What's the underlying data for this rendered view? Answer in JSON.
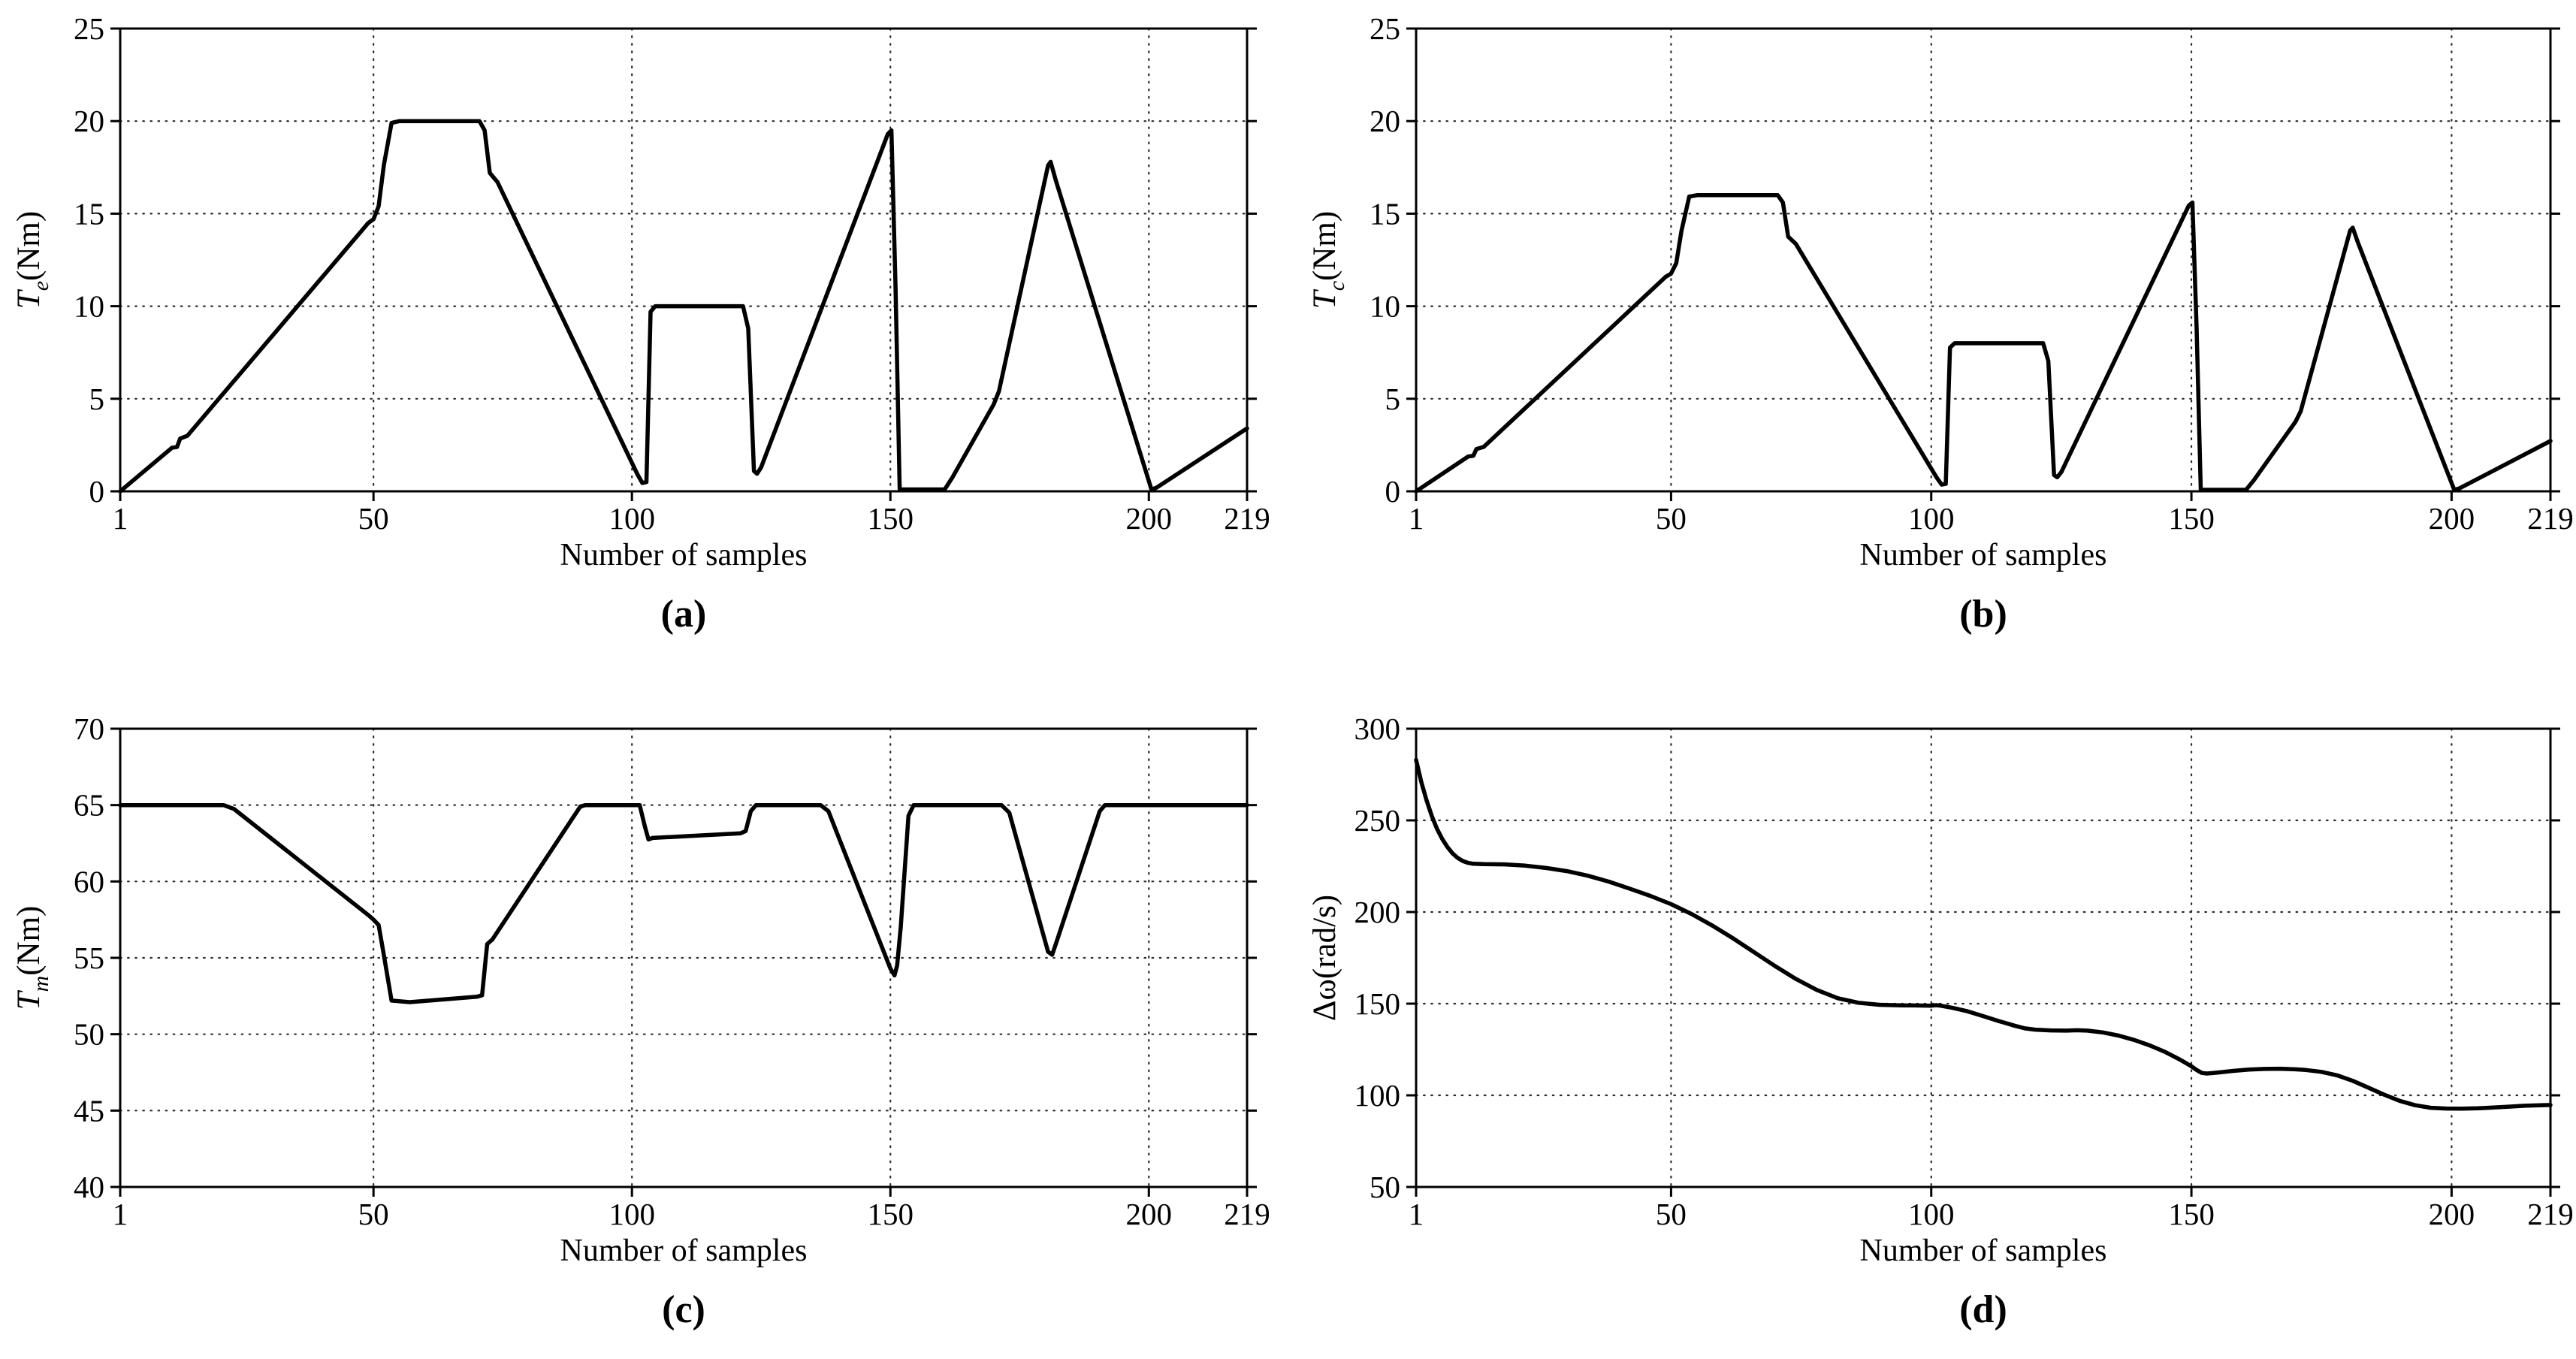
{
  "figure": {
    "background": "#ffffff",
    "curve_color": "#000000",
    "grid_color": "#2b2b2b",
    "axis_color": "#000000",
    "xlabel": "Number of samples"
  },
  "chart_data": [
    {
      "type": "line",
      "panel": "a",
      "caption": "(a)",
      "title": "",
      "xlabel": "Number of samples",
      "ylabel": "T_e(Nm)",
      "ylabel_parts": {
        "main": "T",
        "sub": "e",
        "unit": "(Nm)"
      },
      "xlim": [
        1,
        219
      ],
      "ylim": [
        0,
        25
      ],
      "xticks": [
        1,
        50,
        100,
        150,
        200,
        219
      ],
      "yticks": [
        0,
        5,
        10,
        15,
        20,
        25
      ],
      "grid": true,
      "legend": "none",
      "series": [
        {
          "name": "T_e",
          "points": [
            [
              1,
              0
            ],
            [
              11,
              2.35
            ],
            [
              12,
              2.4
            ],
            [
              12.6,
              2.85
            ],
            [
              14,
              3
            ],
            [
              49,
              14.5
            ],
            [
              50,
              14.7
            ],
            [
              51,
              15.4
            ],
            [
              52,
              17.6
            ],
            [
              53.5,
              19.9
            ],
            [
              55,
              20
            ],
            [
              70.5,
              20
            ],
            [
              71.5,
              19.5
            ],
            [
              72.5,
              17.2
            ],
            [
              74,
              16.7
            ],
            [
              101,
              0.95
            ],
            [
              102,
              0.45
            ],
            [
              102.8,
              0.5
            ],
            [
              103.6,
              9.7
            ],
            [
              104.5,
              10
            ],
            [
              121.5,
              10
            ],
            [
              122.5,
              8.8
            ],
            [
              123.6,
              1.1
            ],
            [
              124.2,
              0.95
            ],
            [
              125,
              1.3
            ],
            [
              149.5,
              19.3
            ],
            [
              150.2,
              19.5
            ],
            [
              151,
              11
            ],
            [
              151.8,
              0.1
            ],
            [
              160.5,
              0.1
            ],
            [
              162,
              0.75
            ],
            [
              170,
              4.7
            ],
            [
              171,
              5.4
            ],
            [
              180.5,
              17.6
            ],
            [
              181,
              17.8
            ],
            [
              182,
              16.8
            ],
            [
              200.5,
              0.1
            ],
            [
              201.5,
              0.2
            ],
            [
              219,
              3.4
            ]
          ]
        }
      ]
    },
    {
      "type": "line",
      "panel": "b",
      "caption": "(b)",
      "title": "",
      "xlabel": "Number of samples",
      "ylabel": "T_c(Nm)",
      "ylabel_parts": {
        "main": "T",
        "sub": "c",
        "unit": "(Nm)"
      },
      "xlim": [
        1,
        219
      ],
      "ylim": [
        0,
        25
      ],
      "xticks": [
        1,
        50,
        100,
        150,
        200,
        219
      ],
      "yticks": [
        0,
        5,
        10,
        15,
        20,
        25
      ],
      "grid": true,
      "legend": "none",
      "series": [
        {
          "name": "T_c",
          "points": [
            [
              1,
              0
            ],
            [
              11,
              1.88
            ],
            [
              12,
              1.92
            ],
            [
              12.6,
              2.28
            ],
            [
              14,
              2.4
            ],
            [
              49,
              11.6
            ],
            [
              50,
              11.76
            ],
            [
              51,
              12.32
            ],
            [
              52,
              14.08
            ],
            [
              53.5,
              15.92
            ],
            [
              55,
              16
            ],
            [
              70.5,
              16
            ],
            [
              71.5,
              15.6
            ],
            [
              72.5,
              13.76
            ],
            [
              74,
              13.36
            ],
            [
              101,
              0.76
            ],
            [
              102,
              0.36
            ],
            [
              102.8,
              0.4
            ],
            [
              103.6,
              7.76
            ],
            [
              104.5,
              8
            ],
            [
              121.5,
              8
            ],
            [
              122.5,
              7.04
            ],
            [
              123.6,
              0.88
            ],
            [
              124.2,
              0.76
            ],
            [
              125,
              1.04
            ],
            [
              149.5,
              15.44
            ],
            [
              150.2,
              15.6
            ],
            [
              151,
              8.8
            ],
            [
              151.8,
              0.08
            ],
            [
              160.5,
              0.08
            ],
            [
              162,
              0.6
            ],
            [
              170,
              3.76
            ],
            [
              171,
              4.32
            ],
            [
              180.5,
              14.08
            ],
            [
              181,
              14.24
            ],
            [
              182,
              13.44
            ],
            [
              200.5,
              0.08
            ],
            [
              201.5,
              0.16
            ],
            [
              219,
              2.72
            ]
          ]
        }
      ]
    },
    {
      "type": "line",
      "panel": "c",
      "caption": "(c)",
      "title": "",
      "xlabel": "Number of samples",
      "ylabel": "T_m(Nm)",
      "ylabel_parts": {
        "main": "T",
        "sub": "m",
        "unit": "(Nm)"
      },
      "xlim": [
        1,
        219
      ],
      "ylim": [
        40,
        70
      ],
      "xticks": [
        1,
        50,
        100,
        150,
        200,
        219
      ],
      "yticks": [
        40,
        45,
        50,
        55,
        60,
        65,
        70
      ],
      "grid": true,
      "legend": "none",
      "series": [
        {
          "name": "T_m",
          "points": [
            [
              1,
              65
            ],
            [
              21,
              65
            ],
            [
              23,
              64.75
            ],
            [
              49,
              57.8
            ],
            [
              50,
              57.5
            ],
            [
              51,
              57.15
            ],
            [
              52,
              55.2
            ],
            [
              53.5,
              52.2
            ],
            [
              57,
              52.1
            ],
            [
              70,
              52.45
            ],
            [
              71,
              52.55
            ],
            [
              72,
              55.9
            ],
            [
              73,
              56.2
            ],
            [
              90,
              64.9
            ],
            [
              91,
              65
            ],
            [
              101.5,
              65
            ],
            [
              102.5,
              63.6
            ],
            [
              103.2,
              62.75
            ],
            [
              104,
              62.85
            ],
            [
              121,
              63.15
            ],
            [
              122,
              63.3
            ],
            [
              123,
              64.6
            ],
            [
              124,
              65
            ],
            [
              136.5,
              65
            ],
            [
              138,
              64.6
            ],
            [
              150,
              54.3
            ],
            [
              150.8,
              53.85
            ],
            [
              151.3,
              54.5
            ],
            [
              152,
              57
            ],
            [
              153.5,
              64.3
            ],
            [
              154.5,
              65
            ],
            [
              171.5,
              65
            ],
            [
              173,
              64.5
            ],
            [
              180.5,
              55.4
            ],
            [
              181.3,
              55.2
            ],
            [
              182,
              55.9
            ],
            [
              190.5,
              64.6
            ],
            [
              191.5,
              65
            ],
            [
              219,
              65
            ]
          ]
        }
      ]
    },
    {
      "type": "line",
      "panel": "d",
      "caption": "(d)",
      "title": "",
      "xlabel": "Number of samples",
      "ylabel": "Δω(rad/s)",
      "ylabel_parts": {
        "main": "Δω",
        "sub": "",
        "unit": "(rad/s)"
      },
      "xlim": [
        1,
        219
      ],
      "ylim": [
        50,
        300
      ],
      "xticks": [
        1,
        50,
        100,
        150,
        200,
        219
      ],
      "yticks": [
        50,
        100,
        150,
        200,
        250,
        300
      ],
      "grid": true,
      "legend": "none",
      "series": [
        {
          "name": "delta_omega",
          "points": [
            [
              1,
              283
            ],
            [
              2,
              271
            ],
            [
              3,
              261
            ],
            [
              4,
              252.5
            ],
            [
              5,
              245.5
            ],
            [
              6,
              240
            ],
            [
              7,
              235.5
            ],
            [
              8,
              232
            ],
            [
              9,
              229.5
            ],
            [
              10,
              227.8
            ],
            [
              11,
              226.8
            ],
            [
              12,
              226.3
            ],
            [
              14,
              226.1
            ],
            [
              18,
              226
            ],
            [
              22,
              225.3
            ],
            [
              26,
              224
            ],
            [
              30,
              222.3
            ],
            [
              34,
              219.8
            ],
            [
              38,
              216.6
            ],
            [
              42,
              212.8
            ],
            [
              46,
              208.8
            ],
            [
              50,
              204.3
            ],
            [
              54,
              198.8
            ],
            [
              58,
              192.5
            ],
            [
              62,
              185.5
            ],
            [
              66,
              178
            ],
            [
              70,
              170.5
            ],
            [
              74,
              163.5
            ],
            [
              78,
              157.5
            ],
            [
              82,
              153
            ],
            [
              86,
              150.5
            ],
            [
              90,
              149.4
            ],
            [
              94,
              149.1
            ],
            [
              97,
              149
            ],
            [
              100,
              148.9
            ],
            [
              101,
              149.2
            ],
            [
              102,
              148.8
            ],
            [
              104,
              147.8
            ],
            [
              107,
              145.8
            ],
            [
              110,
              143.2
            ],
            [
              113,
              140.5
            ],
            [
              116,
              138
            ],
            [
              118,
              136.5
            ],
            [
              120,
              135.8
            ],
            [
              123,
              135.4
            ],
            [
              126,
              135.3
            ],
            [
              128,
              135.5
            ],
            [
              130,
              135.3
            ],
            [
              133,
              134.3
            ],
            [
              136,
              132.6
            ],
            [
              139,
              130.2
            ],
            [
              142,
              127.2
            ],
            [
              145,
              123.6
            ],
            [
              148,
              119.2
            ],
            [
              150,
              115.8
            ],
            [
              151,
              113.8
            ],
            [
              152,
              112.2
            ],
            [
              153,
              111.9
            ],
            [
              155,
              112.4
            ],
            [
              158,
              113.3
            ],
            [
              161,
              114
            ],
            [
              164,
              114.4
            ],
            [
              167,
              114.5
            ],
            [
              170,
              114.2
            ],
            [
              172,
              113.8
            ],
            [
              175,
              112.8
            ],
            [
              178,
              110.9
            ],
            [
              181,
              107.9
            ],
            [
              184,
              104.2
            ],
            [
              187,
              100.4
            ],
            [
              190,
              97
            ],
            [
              193,
              94.6
            ],
            [
              196,
              93.2
            ],
            [
              199,
              92.8
            ],
            [
              202,
              92.7
            ],
            [
              205,
              92.9
            ],
            [
              208,
              93.3
            ],
            [
              211,
              93.8
            ],
            [
              214,
              94.3
            ],
            [
              217,
              94.6
            ],
            [
              219,
              94.7
            ]
          ]
        }
      ]
    }
  ]
}
